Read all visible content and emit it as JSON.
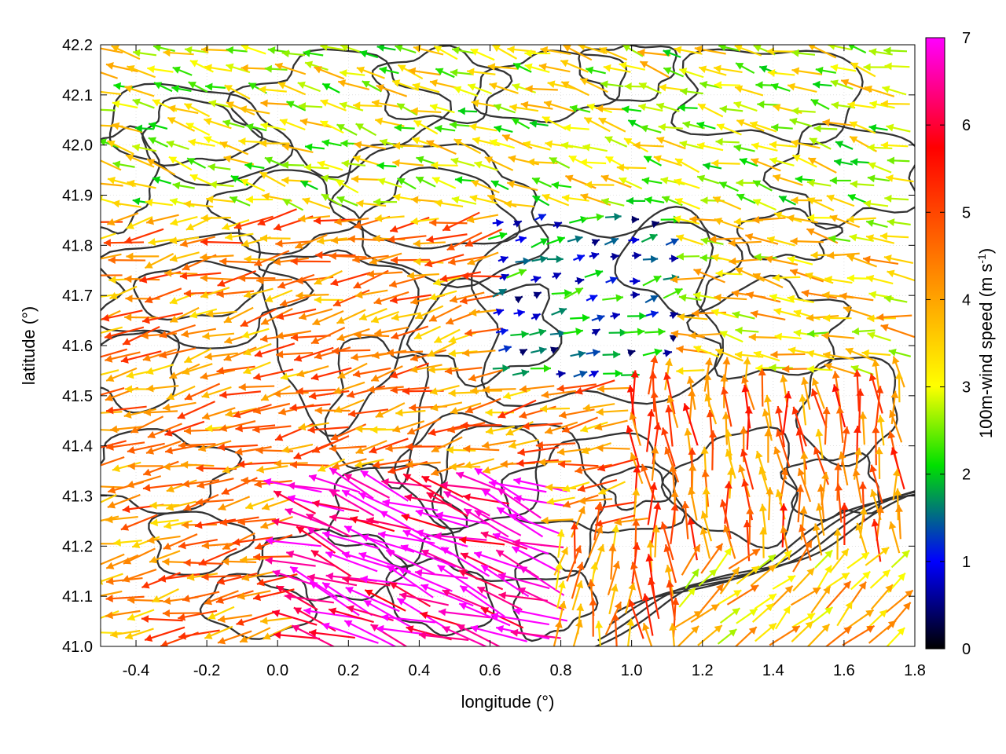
{
  "chart_data": {
    "type": "vector-field",
    "xlabel": "longitude (°)",
    "ylabel": "latitude (°)",
    "colorbar_label": "100m-wind speed (m s-1)",
    "colorbar_label_parts": {
      "main": "100m-wind speed (m s",
      "sup": "-1",
      "close": ")"
    },
    "xlim": [
      -0.5,
      1.8
    ],
    "ylim": [
      41.0,
      42.2
    ],
    "x_ticks": [
      -0.4,
      -0.2,
      0.0,
      0.2,
      0.4,
      0.6,
      0.8,
      1.0,
      1.2,
      1.4,
      1.6,
      1.8
    ],
    "x_tick_labels": [
      "-0.4",
      "-0.2",
      "0.0",
      "0.2",
      "0.4",
      "0.6",
      "0.8",
      "1.0",
      "1.2",
      "1.4",
      "1.6",
      "1.8"
    ],
    "y_ticks": [
      41.0,
      41.1,
      41.2,
      41.3,
      41.4,
      41.5,
      41.6,
      41.7,
      41.8,
      41.9,
      42.0,
      42.1,
      42.2
    ],
    "y_tick_labels": [
      "41.0",
      "41.1",
      "41.2",
      "41.3",
      "41.4",
      "41.5",
      "41.6",
      "41.7",
      "41.8",
      "41.9",
      "42.0",
      "42.1",
      "42.2"
    ],
    "colorbar_range": [
      0,
      7
    ],
    "colorbar_ticks": [
      0,
      1,
      2,
      3,
      4,
      5,
      6,
      7
    ],
    "colorbar_tick_labels": [
      "0",
      "1",
      "2",
      "3",
      "4",
      "5",
      "6",
      "7"
    ],
    "colormap": [
      "#000000",
      "#0000ff",
      "#00e000",
      "#ffff00",
      "#ffa500",
      "#ff0000",
      "#ff00ff"
    ],
    "contour_color": "#333333",
    "grid": "dotted",
    "vector_regions": [
      {
        "region": "west (lon -0.5 to 0.3, lat 41.0-41.8)",
        "direction_to_deg": 190,
        "speed": 4.3
      },
      {
        "region": "south-central jet (lon 0.0-0.7, lat 41.0-41.35)",
        "direction_to_deg": 165,
        "speed": 6.8
      },
      {
        "region": "central basin (lon 0.6-1.1, lat 41.55-41.85)",
        "direction_to_deg": 20,
        "speed": 1.5
      },
      {
        "region": "north (lat 41.9-42.2)",
        "direction_to_deg": 165,
        "speed": 3.0
      },
      {
        "region": "south-east (lon 1.2-1.8, lat 41.0-41.2)",
        "direction_to_deg": 45,
        "speed": 3.6
      },
      {
        "region": "east (lon 1.0-1.8, lat 41.2-41.55)",
        "direction_to_deg": 95,
        "speed": 4.6
      }
    ]
  }
}
